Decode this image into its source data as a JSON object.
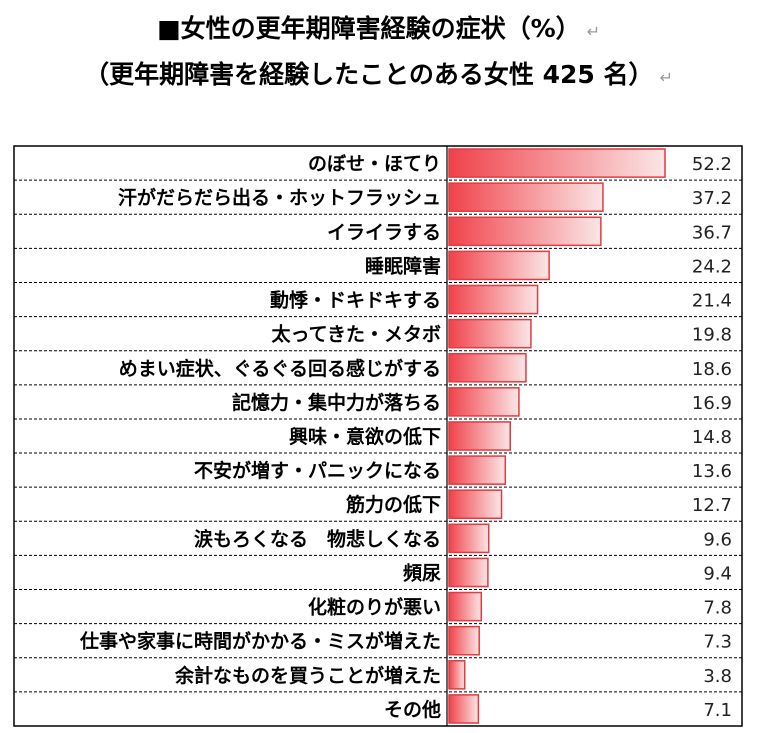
{
  "title_line1": "■女性の更年期障害経験の症状（%）",
  "title_line2": "（更年期障害を経験したことのある女性 425 名）",
  "return_mark": "↵",
  "chart_data": {
    "type": "bar",
    "orientation": "horizontal",
    "categories": [
      "のぼせ・ほてり",
      "汗がだらだら出る・ホットフラッシュ",
      "イライラする",
      "睡眠障害",
      "動悸・ドキドキする",
      "太ってきた・メタボ",
      "めまい症状、ぐるぐる回る感じがする",
      "記憶力・集中力が落ちる",
      "興味・意欲の低下",
      "不安が増す・パニックになる",
      "筋力の低下",
      "涙もろくなる　物悲しくなる",
      "頻尿",
      "化粧のりが悪い",
      "仕事や家事に時間がかかる・ミスが増えた",
      "余計なものを買うことが増えた",
      "その他"
    ],
    "values": [
      52.2,
      37.2,
      36.7,
      24.2,
      21.4,
      19.8,
      18.6,
      16.9,
      14.8,
      13.6,
      12.7,
      9.6,
      9.4,
      7.8,
      7.3,
      3.8,
      7.1
    ],
    "value_labels": [
      "52.2",
      "37.2",
      "36.7",
      "24.2",
      "21.4",
      "19.8",
      "18.6",
      "16.9",
      "14.8",
      "13.6",
      "12.7",
      "9.6",
      "9.4",
      "7.8",
      "7.3",
      "3.8",
      "7.1"
    ],
    "xlim": [
      0,
      52.2
    ],
    "bar_gradient": [
      "#f0424a",
      "#fbe6e6"
    ],
    "bar_border": "#e23a42",
    "grid": false,
    "legend": "none"
  }
}
